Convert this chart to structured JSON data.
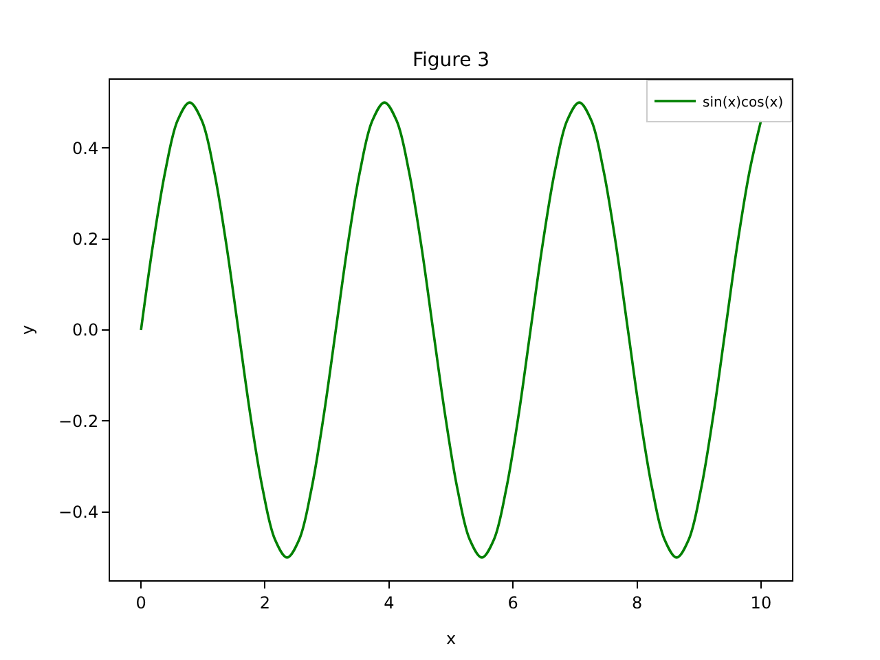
{
  "chart_data": {
    "type": "line",
    "title": "Figure 3",
    "xlabel": "x",
    "ylabel": "y",
    "xlim": [
      -0.5,
      10.5
    ],
    "xticks": [
      0,
      2,
      4,
      6,
      8,
      10
    ],
    "ylim": [
      -0.55,
      0.55
    ],
    "yticks": [
      {
        "value": -0.4,
        "label": "−0.4"
      },
      {
        "value": -0.2,
        "label": "−0.2"
      },
      {
        "value": 0.0,
        "label": "0.0"
      },
      {
        "value": 0.2,
        "label": "0.2"
      },
      {
        "value": 0.4,
        "label": "0.4"
      }
    ],
    "grid": false,
    "legend": "top right",
    "line_style": "solid",
    "marker": "none",
    "series": [
      {
        "name": "sin(x)cos(x)",
        "color": "#008000",
        "x": [
          0,
          0.196,
          0.393,
          0.589,
          0.785,
          0.982,
          1.178,
          1.374,
          1.571,
          1.767,
          1.963,
          2.16,
          2.356,
          2.553,
          2.749,
          2.945,
          3.142,
          3.338,
          3.534,
          3.731,
          3.927,
          4.123,
          4.32,
          4.516,
          4.712,
          4.909,
          5.105,
          5.301,
          5.498,
          5.694,
          5.89,
          6.087,
          6.283,
          6.48,
          6.676,
          6.872,
          7.069,
          7.265,
          7.461,
          7.658,
          7.854,
          8.05,
          8.247,
          8.443,
          8.639,
          8.836,
          9.032,
          9.228,
          9.425,
          9.621,
          9.817,
          10
        ],
        "values": [
          0,
          0.19,
          0.35,
          0.46,
          0.5,
          0.46,
          0.35,
          0.19,
          0,
          -0.19,
          -0.35,
          -0.46,
          -0.5,
          -0.46,
          -0.35,
          -0.19,
          0,
          0.19,
          0.35,
          0.46,
          0.5,
          0.46,
          0.35,
          0.19,
          0,
          -0.19,
          -0.35,
          -0.46,
          -0.5,
          -0.46,
          -0.35,
          -0.19,
          0,
          0.19,
          0.35,
          0.46,
          0.5,
          0.46,
          0.35,
          0.19,
          0,
          -0.19,
          -0.35,
          -0.46,
          -0.5,
          -0.46,
          -0.35,
          -0.19,
          0,
          0.19,
          0.35,
          0.46
        ]
      }
    ]
  }
}
